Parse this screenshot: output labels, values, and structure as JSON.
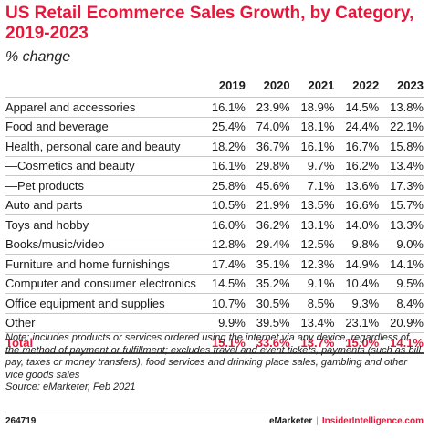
{
  "chart_data": {
    "type": "table",
    "title": "US Retail Ecommerce Sales Growth, by Category, 2019-2023",
    "subtitle": "% change",
    "columns": [
      "2019",
      "2020",
      "2021",
      "2022",
      "2023"
    ],
    "rows": [
      {
        "category": "Apparel and accessories",
        "values": [
          "16.1%",
          "23.9%",
          "18.9%",
          "14.5%",
          "13.8%"
        ]
      },
      {
        "category": "Food and beverage",
        "values": [
          "25.4%",
          "74.0%",
          "18.1%",
          "24.4%",
          "22.1%"
        ]
      },
      {
        "category": "Health, personal care and beauty",
        "values": [
          "18.2%",
          "36.7%",
          "16.1%",
          "16.7%",
          "15.8%"
        ]
      },
      {
        "category": "—Cosmetics and beauty",
        "values": [
          "16.1%",
          "29.8%",
          "9.7%",
          "16.2%",
          "13.4%"
        ]
      },
      {
        "category": "—Pet products",
        "values": [
          "25.8%",
          "45.6%",
          "7.1%",
          "13.6%",
          "17.3%"
        ]
      },
      {
        "category": "Auto and parts",
        "values": [
          "10.5%",
          "21.9%",
          "13.5%",
          "16.6%",
          "15.7%"
        ]
      },
      {
        "category": "Toys and hobby",
        "values": [
          "16.0%",
          "36.2%",
          "13.1%",
          "14.0%",
          "13.3%"
        ]
      },
      {
        "category": "Books/music/video",
        "values": [
          "12.8%",
          "29.4%",
          "12.5%",
          "9.8%",
          "9.0%"
        ]
      },
      {
        "category": "Furniture and home furnishings",
        "values": [
          "17.4%",
          "35.1%",
          "12.3%",
          "14.9%",
          "14.1%"
        ]
      },
      {
        "category": "Computer and consumer electronics",
        "values": [
          "14.5%",
          "35.2%",
          "9.1%",
          "10.4%",
          "9.5%"
        ]
      },
      {
        "category": "Office equipment and supplies",
        "values": [
          "10.7%",
          "30.5%",
          "8.5%",
          "9.3%",
          "8.4%"
        ]
      },
      {
        "category": "Other",
        "values": [
          "9.9%",
          "39.5%",
          "13.4%",
          "23.1%",
          "20.9%"
        ]
      }
    ],
    "total": {
      "category": "Total",
      "values": [
        "15.1%",
        "33.6%",
        "13.7%",
        "15.0%",
        "14.1%"
      ]
    },
    "accent_color": "#e8173a"
  },
  "note": "Note: includes products or services ordered using the internet via any device, regardless of the method of payment or fulfillment; excludes travel and event tickets, payments (such as bill pay, taxes or money transfers), food services and drinking place sales, gambling and other vice goods sales",
  "source": "Source: eMarketer, Feb 2021",
  "footer": {
    "id": "264719",
    "brand": "eMarketer",
    "separator": "|",
    "site": "InsiderIntelligence.com"
  }
}
